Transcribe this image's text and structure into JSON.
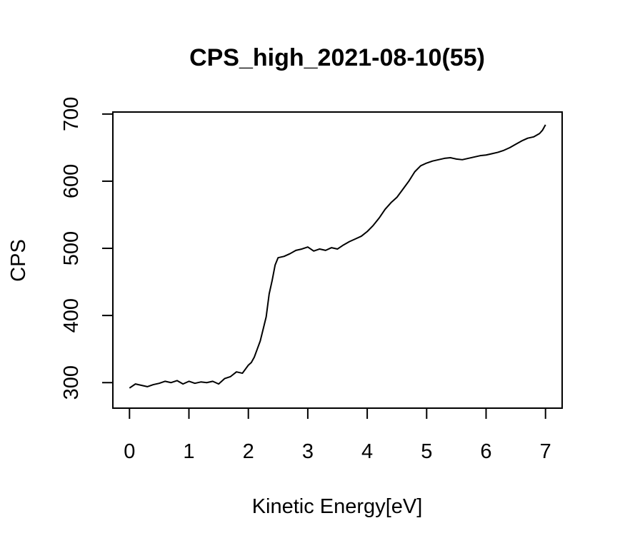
{
  "chart_data": {
    "type": "line",
    "title": "CPS_high_2021-08-10(55)",
    "xlabel": "Kinetic Energy[eV]",
    "ylabel": "CPS",
    "xlim": [
      -0.28,
      7.28
    ],
    "ylim": [
      262,
      703
    ],
    "x_ticks": [
      "0",
      "1",
      "2",
      "3",
      "4",
      "5",
      "6",
      "7"
    ],
    "x_tick_values": [
      0,
      1,
      2,
      3,
      4,
      5,
      6,
      7
    ],
    "y_ticks": [
      "300",
      "400",
      "500",
      "600",
      "700"
    ],
    "y_tick_values": [
      300,
      400,
      500,
      600,
      700
    ],
    "grid": false,
    "legend": "none",
    "series": [
      {
        "x": [
          0.0,
          0.1,
          0.2,
          0.3,
          0.4,
          0.5,
          0.6,
          0.7,
          0.8,
          0.9,
          1.0,
          1.1,
          1.2,
          1.3,
          1.4,
          1.5,
          1.6,
          1.7,
          1.8,
          1.9,
          2.0,
          2.05,
          2.1,
          2.15,
          2.2,
          2.25,
          2.3,
          2.35,
          2.4,
          2.45,
          2.5,
          2.6,
          2.7,
          2.8,
          2.9,
          3.0,
          3.1,
          3.2,
          3.3,
          3.4,
          3.5,
          3.6,
          3.7,
          3.8,
          3.9,
          4.0,
          4.1,
          4.2,
          4.3,
          4.4,
          4.5,
          4.6,
          4.7,
          4.8,
          4.9,
          5.0,
          5.1,
          5.2,
          5.3,
          5.4,
          5.5,
          5.6,
          5.7,
          5.8,
          5.9,
          6.0,
          6.1,
          6.2,
          6.3,
          6.4,
          6.5,
          6.6,
          6.7,
          6.8,
          6.9,
          6.95,
          7.0
        ],
        "y": [
          292,
          298,
          296,
          294,
          297,
          299,
          302,
          300,
          303,
          298,
          302,
          299,
          301,
          300,
          302,
          298,
          306,
          309,
          316,
          314,
          326,
          330,
          338,
          350,
          362,
          380,
          398,
          432,
          452,
          475,
          486,
          488,
          492,
          497,
          499,
          502,
          496,
          499,
          497,
          501,
          499,
          505,
          510,
          514,
          518,
          525,
          534,
          545,
          558,
          568,
          576,
          588,
          600,
          614,
          623,
          627,
          630,
          632,
          634,
          635,
          633,
          632,
          634,
          636,
          638,
          639,
          641,
          643,
          646,
          650,
          655,
          660,
          664,
          666,
          671,
          676,
          684
        ]
      }
    ]
  }
}
